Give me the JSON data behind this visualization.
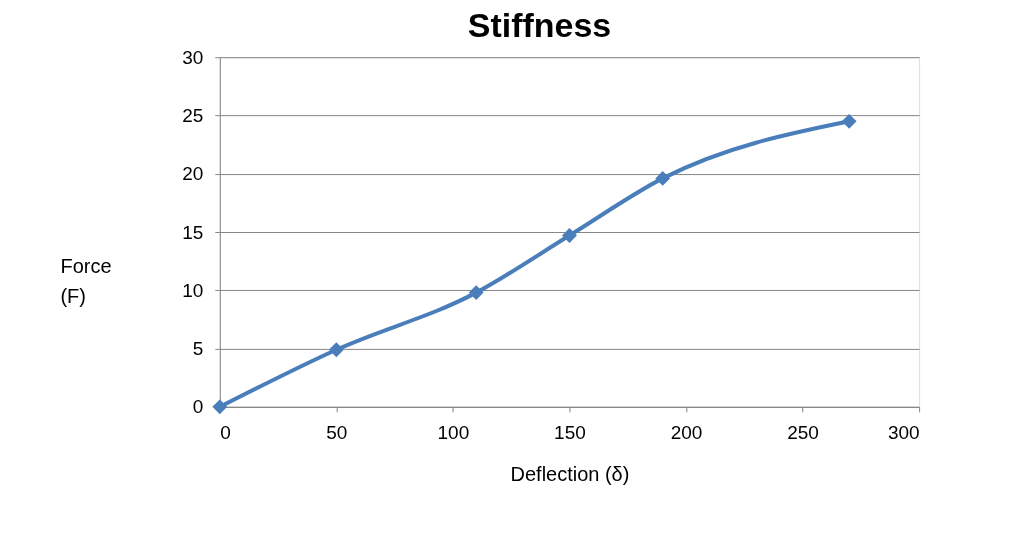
{
  "chart_data": {
    "type": "line",
    "title": "Stiffness",
    "xlabel": "Deflection (δ)",
    "ylabel": "Force (F)",
    "x": [
      0,
      50,
      110,
      150,
      190,
      270
    ],
    "series": [
      {
        "color": "#4a7ebb",
        "values": [
          0,
          4.9,
          9.8,
          14.7,
          19.6,
          24.5
        ]
      }
    ],
    "xlim": [
      0,
      300
    ],
    "xticks": [
      0,
      50,
      100,
      150,
      200,
      250,
      300
    ],
    "ylim": [
      0,
      30
    ],
    "yticks": [
      0,
      5,
      10,
      15,
      20,
      25,
      30
    ],
    "grid": "y",
    "marker": "diamond",
    "line_style": "solid"
  }
}
